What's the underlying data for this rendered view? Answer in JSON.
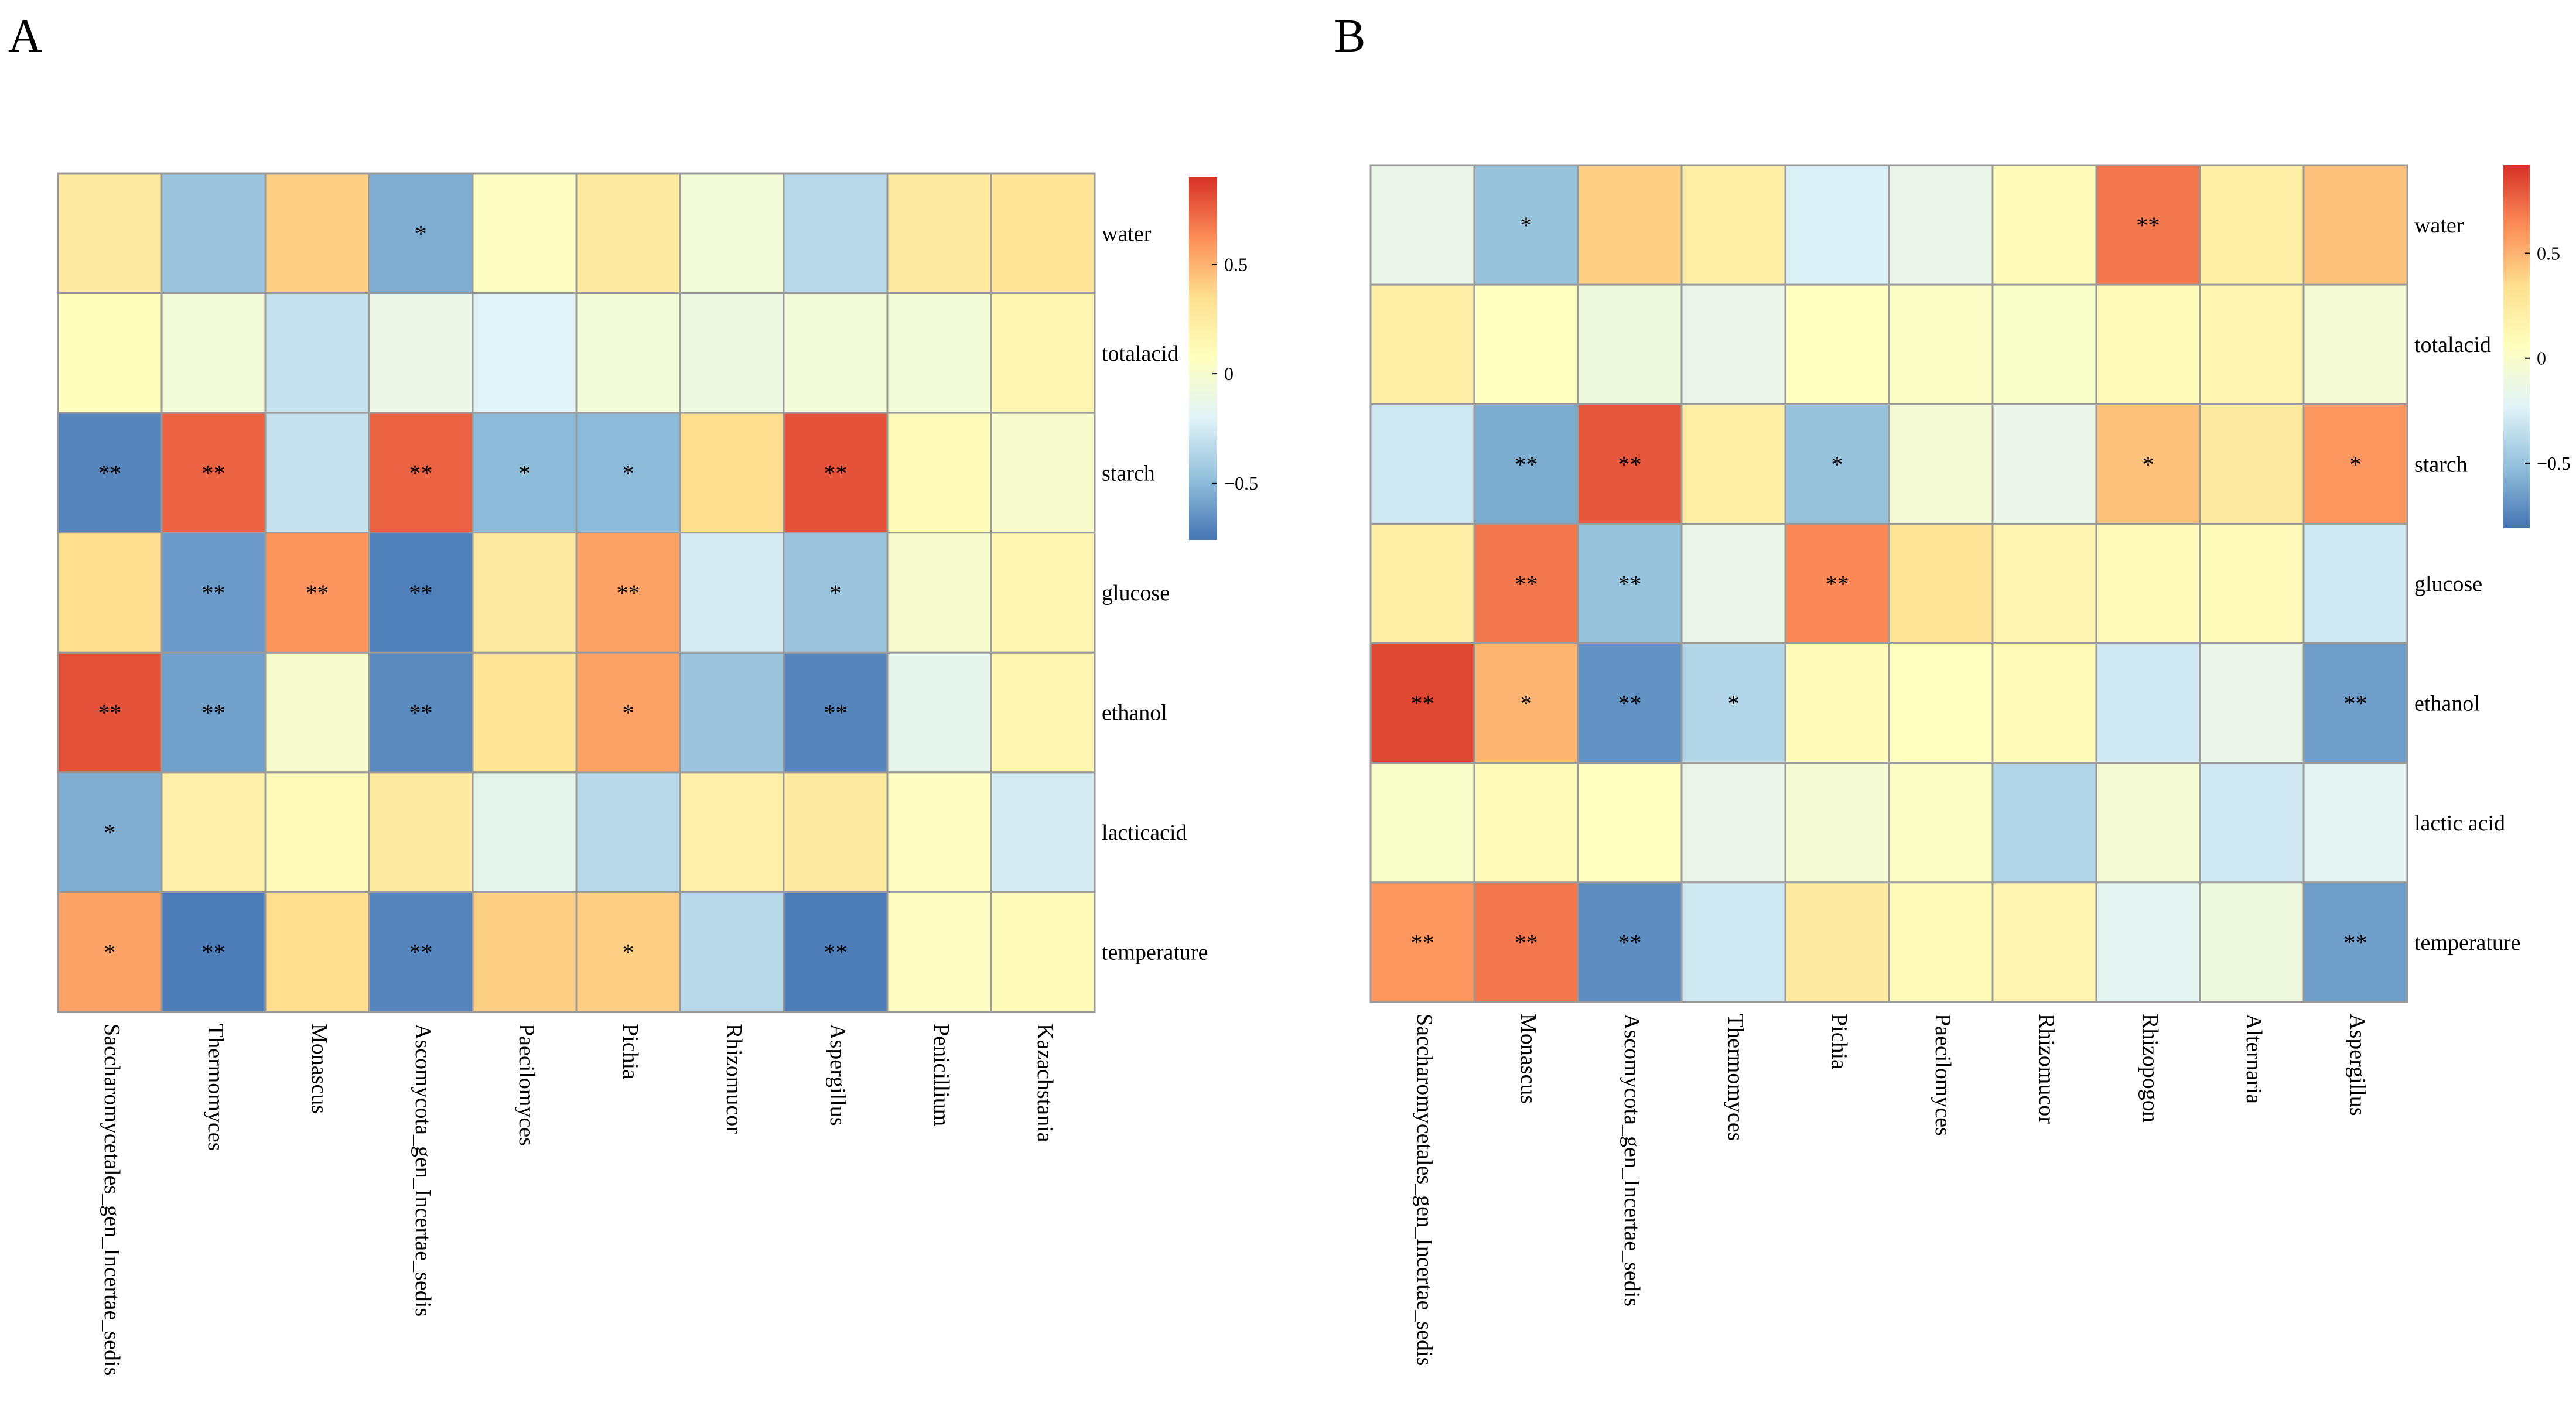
{
  "chart_data": [
    {
      "type": "heatmap",
      "label": "A",
      "rows": [
        "water",
        "totalacid",
        "starch",
        "glucose",
        "ethanol",
        "lacticacid",
        "temperature"
      ],
      "columns": [
        "Saccharomycetales_gen_Incertae_sedis",
        "Thermomyces",
        "Monascus",
        "Ascomycota_gen_Incertae_sedis",
        "Paecilomyces",
        "Pichia",
        "Rhizomucor",
        "Aspergillus",
        "Penicillium",
        "Kazachstania"
      ],
      "values": [
        [
          0.25,
          -0.45,
          0.4,
          -0.55,
          0.05,
          0.25,
          -0.05,
          -0.35,
          0.25,
          0.3
        ],
        [
          0.08,
          -0.05,
          -0.3,
          -0.12,
          -0.2,
          -0.05,
          -0.1,
          -0.05,
          -0.05,
          0.15
        ],
        [
          -0.7,
          0.75,
          -0.3,
          0.75,
          -0.5,
          -0.5,
          0.35,
          0.8,
          0.1,
          0
        ],
        [
          0.35,
          -0.62,
          0.6,
          -0.72,
          0.25,
          0.55,
          -0.25,
          -0.45,
          0,
          0.15
        ],
        [
          0.8,
          -0.6,
          0,
          -0.68,
          0.3,
          0.55,
          -0.45,
          -0.7,
          -0.15,
          0.15
        ],
        [
          -0.55,
          0.2,
          0.1,
          0.25,
          -0.15,
          -0.35,
          0.2,
          0.25,
          0.05,
          -0.25
        ],
        [
          0.55,
          -0.73,
          0.35,
          -0.7,
          0.4,
          0.4,
          -0.35,
          -0.73,
          0.05,
          0.1
        ]
      ],
      "stars": [
        [
          null,
          null,
          null,
          "*",
          null,
          null,
          null,
          null,
          null,
          null
        ],
        [
          null,
          null,
          null,
          null,
          null,
          null,
          null,
          null,
          null,
          null
        ],
        [
          "**",
          "**",
          null,
          "**",
          "*",
          "*",
          null,
          "**",
          null,
          null
        ],
        [
          null,
          "**",
          "**",
          "**",
          null,
          "**",
          null,
          "*",
          null,
          null
        ],
        [
          "**",
          "**",
          null,
          "**",
          null,
          "*",
          null,
          "**",
          null,
          null
        ],
        [
          "*",
          null,
          null,
          null,
          null,
          null,
          null,
          null,
          null,
          null
        ],
        [
          "*",
          "**",
          null,
          "**",
          null,
          "*",
          null,
          "**",
          null,
          null
        ]
      ],
      "zlim": [
        -0.76,
        0.9
      ],
      "zticks": [
        0.5,
        0,
        {
          "value": -0.5,
          "label": "−0.5"
        }
      ],
      "colors": [
        "#4575B4",
        "#91BFDB",
        "#E0F3F8",
        "#FFFFBF",
        "#FEE090",
        "#FC8D59",
        "#D73027"
      ]
    },
    {
      "type": "heatmap",
      "label": "B",
      "rows": [
        "water",
        "totalacid",
        "starch",
        "glucose",
        "ethanol",
        "lactic acid",
        "temperature"
      ],
      "columns": [
        "Saccharomycetales_gen_Incertae_sedis",
        "Monascus",
        "Ascomycota_gen_Incertae_sedis",
        "Thermomyces",
        "Pichia",
        "Paecilomyces",
        "Rhizomucor",
        "Rhizopogon",
        "Alternaria",
        "Aspergillus"
      ],
      "values": [
        [
          -0.15,
          -0.5,
          0.4,
          0.2,
          -0.25,
          -0.15,
          0.08,
          0.7,
          0.2,
          0.45
        ],
        [
          0.2,
          0.05,
          -0.1,
          -0.15,
          0.05,
          0.02,
          0,
          0.1,
          0.15,
          -0.05
        ],
        [
          -0.3,
          -0.6,
          0.8,
          0.2,
          -0.5,
          -0.05,
          -0.15,
          0.45,
          0.25,
          0.6
        ],
        [
          0.2,
          0.7,
          -0.5,
          -0.15,
          0.65,
          0.3,
          0.15,
          0.1,
          0.08,
          -0.3
        ],
        [
          0.85,
          0.5,
          -0.7,
          -0.4,
          0.08,
          0.05,
          0.1,
          -0.3,
          -0.15,
          -0.65
        ],
        [
          0,
          0.08,
          0.05,
          -0.15,
          -0.05,
          0.02,
          -0.4,
          -0.05,
          -0.3,
          -0.2
        ],
        [
          0.6,
          0.7,
          -0.72,
          -0.3,
          0.25,
          0.08,
          0.15,
          -0.2,
          -0.1,
          -0.65
        ]
      ],
      "stars": [
        [
          null,
          "*",
          null,
          null,
          null,
          null,
          null,
          "**",
          null,
          null
        ],
        [
          null,
          null,
          null,
          null,
          null,
          null,
          null,
          null,
          null,
          null
        ],
        [
          null,
          "**",
          "**",
          null,
          "*",
          null,
          null,
          "*",
          null,
          "*"
        ],
        [
          null,
          "**",
          "**",
          null,
          "**",
          null,
          null,
          null,
          null,
          null
        ],
        [
          "**",
          "*",
          "**",
          "*",
          null,
          null,
          null,
          null,
          null,
          "**"
        ],
        [
          null,
          null,
          null,
          null,
          null,
          null,
          null,
          null,
          null,
          null
        ],
        [
          "**",
          "**",
          "**",
          null,
          null,
          null,
          null,
          null,
          null,
          "**"
        ]
      ],
      "zlim": [
        -0.81,
        0.92
      ],
      "zticks": [
        0.5,
        0,
        {
          "value": -0.5,
          "label": "−0.5"
        }
      ],
      "colors": [
        "#4575B4",
        "#91BFDB",
        "#E0F3F8",
        "#FFFFBF",
        "#FEE090",
        "#FC8D59",
        "#D73027"
      ]
    }
  ]
}
